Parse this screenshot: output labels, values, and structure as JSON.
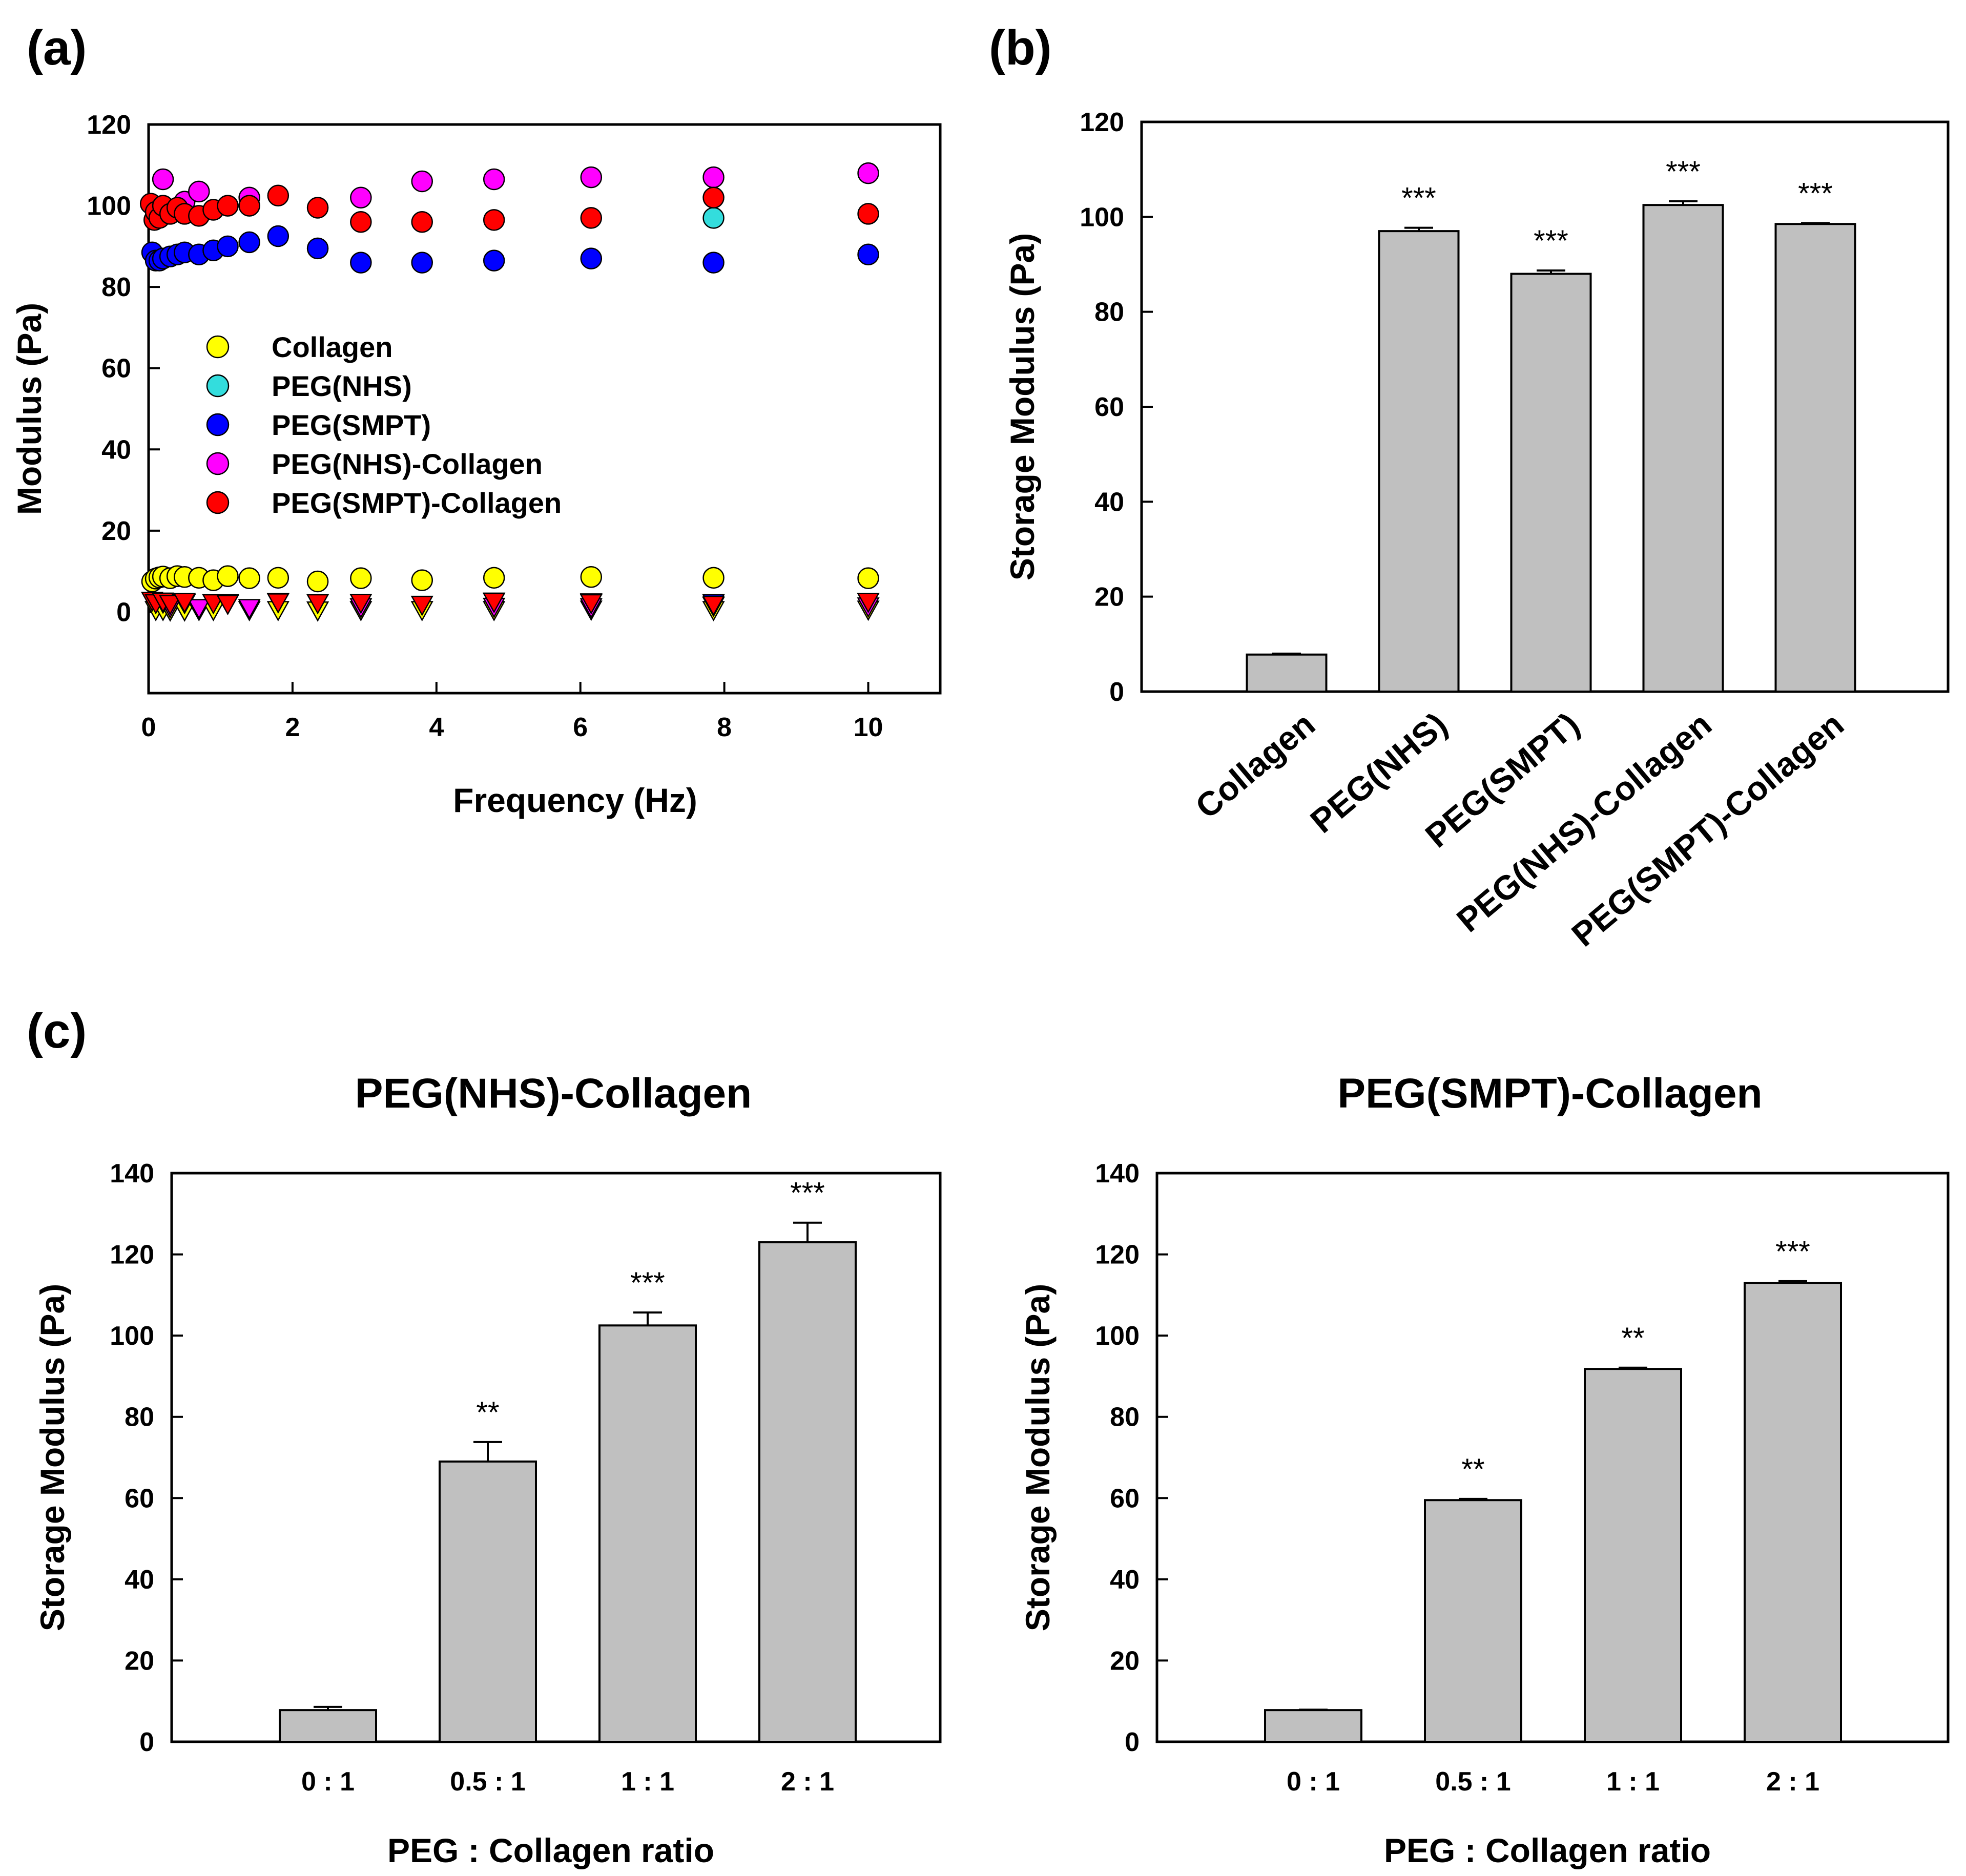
{
  "panels": {
    "a": "(a)",
    "b": "(b)",
    "c": "(c)"
  },
  "chart_data": [
    {
      "id": "a",
      "type": "scatter",
      "xlabel": "Frequency (Hz)",
      "ylabel": "Modulus (Pa)",
      "xlim": [
        0,
        11
      ],
      "ylim": [
        -20,
        120
      ],
      "xticks": [
        0,
        2,
        4,
        6,
        8,
        10
      ],
      "yticks": [
        0,
        20,
        40,
        60,
        80,
        100,
        120
      ],
      "legend_position": "center-left",
      "note": "circles = storage modulus, triangles = loss modulus",
      "series": [
        {
          "name": "Collagen",
          "color": "#ffff00",
          "storage": [
            [
              0.05,
              7.5
            ],
            [
              0.1,
              8.2
            ],
            [
              0.15,
              8.5
            ],
            [
              0.2,
              8.7
            ],
            [
              0.3,
              8.3
            ],
            [
              0.4,
              8.8
            ],
            [
              0.5,
              8.6
            ],
            [
              0.7,
              8.4
            ],
            [
              0.9,
              7.8
            ],
            [
              1.1,
              8.8
            ],
            [
              1.4,
              8.3
            ],
            [
              1.8,
              8.4
            ],
            [
              2.35,
              7.5
            ],
            [
              2.95,
              8.3
            ],
            [
              3.8,
              7.8
            ],
            [
              4.8,
              8.4
            ],
            [
              6.15,
              8.6
            ],
            [
              7.85,
              8.4
            ],
            [
              10,
              8.3
            ]
          ],
          "loss": [
            [
              0.1,
              0.5
            ],
            [
              0.2,
              0.5
            ],
            [
              0.3,
              0.4
            ],
            [
              0.5,
              0.4
            ],
            [
              0.7,
              0.5
            ],
            [
              0.9,
              0.5
            ],
            [
              1.4,
              0.5
            ],
            [
              1.8,
              0.5
            ],
            [
              2.35,
              0.4
            ],
            [
              2.95,
              0.5
            ],
            [
              3.8,
              0.5
            ],
            [
              4.8,
              0.5
            ],
            [
              6.15,
              0.6
            ],
            [
              7.85,
              0.5
            ],
            [
              10,
              0.6
            ]
          ]
        },
        {
          "name": "PEG(NHS)",
          "color": "#33dddd",
          "storage": [
            [
              7.85,
              97
            ]
          ],
          "loss": [
            [
              7.85,
              1.5
            ]
          ]
        },
        {
          "name": "PEG(SMPT)",
          "color": "#0000ff",
          "storage": [
            [
              0.05,
              88.5
            ],
            [
              0.1,
              86.5
            ],
            [
              0.15,
              86.5
            ],
            [
              0.2,
              87
            ],
            [
              0.3,
              87.5
            ],
            [
              0.4,
              88
            ],
            [
              0.5,
              88.5
            ],
            [
              0.7,
              88
            ],
            [
              0.9,
              89
            ],
            [
              1.1,
              90
            ],
            [
              1.4,
              91
            ],
            [
              1.8,
              92.5
            ],
            [
              2.35,
              89.5
            ],
            [
              2.95,
              86
            ],
            [
              3.8,
              86
            ],
            [
              4.8,
              86.5
            ],
            [
              6.15,
              87
            ],
            [
              7.85,
              86
            ],
            [
              10,
              88
            ]
          ],
          "loss": [
            [
              0.1,
              2.5
            ],
            [
              0.2,
              2.3
            ],
            [
              0.5,
              2.2
            ],
            [
              1.1,
              2.2
            ],
            [
              1.8,
              2.5
            ],
            [
              2.95,
              2.3
            ],
            [
              4.8,
              2.6
            ],
            [
              6.15,
              2.4
            ],
            [
              7.85,
              2.2
            ],
            [
              10,
              2.5
            ]
          ]
        },
        {
          "name": "PEG(NHS)-Collagen",
          "color": "#ff00ff",
          "storage": [
            [
              0.2,
              106.5
            ],
            [
              0.5,
              101
            ],
            [
              0.7,
              103.5
            ],
            [
              1.4,
              102
            ],
            [
              2.95,
              102
            ],
            [
              3.8,
              106
            ],
            [
              4.8,
              106.5
            ],
            [
              6.15,
              107
            ],
            [
              7.85,
              107
            ],
            [
              10,
              108
            ]
          ],
          "loss": [
            [
              0.3,
              1.2
            ],
            [
              0.7,
              1.0
            ],
            [
              1.4,
              1.0
            ],
            [
              2.95,
              1.2
            ],
            [
              4.8,
              1.3
            ],
            [
              6.15,
              1.2
            ],
            [
              10,
              1.4
            ]
          ]
        },
        {
          "name": "PEG(SMPT)-Collagen",
          "color": "#ff0000",
          "storage": [
            [
              0.03,
              100.5
            ],
            [
              0.08,
              96.5
            ],
            [
              0.1,
              98.5
            ],
            [
              0.15,
              97
            ],
            [
              0.2,
              100
            ],
            [
              0.3,
              98
            ],
            [
              0.4,
              99.5
            ],
            [
              0.5,
              98
            ],
            [
              0.7,
              97.5
            ],
            [
              0.9,
              99
            ],
            [
              1.1,
              100
            ],
            [
              1.4,
              100
            ],
            [
              1.8,
              102.5
            ],
            [
              2.35,
              99.5
            ],
            [
              2.95,
              96
            ],
            [
              3.8,
              96
            ],
            [
              4.8,
              96.5
            ],
            [
              6.15,
              97
            ],
            [
              7.85,
              102
            ],
            [
              10,
              98
            ]
          ],
          "loss": [
            [
              0.05,
              2.8
            ],
            [
              0.1,
              2.2
            ],
            [
              0.2,
              2.6
            ],
            [
              0.3,
              2.0
            ],
            [
              0.5,
              2.5
            ],
            [
              0.9,
              2.2
            ],
            [
              1.1,
              2.0
            ],
            [
              1.8,
              2.4
            ],
            [
              2.35,
              2.2
            ],
            [
              2.95,
              2.3
            ],
            [
              3.8,
              1.8
            ],
            [
              4.8,
              2.5
            ],
            [
              6.15,
              2.2
            ],
            [
              7.85,
              1.8
            ],
            [
              10,
              2.5
            ]
          ]
        }
      ]
    },
    {
      "id": "b",
      "type": "bar",
      "ylabel": "Storage Modulus (Pa)",
      "ylim": [
        0,
        120
      ],
      "yticks": [
        0,
        20,
        40,
        60,
        80,
        100,
        120
      ],
      "categories": [
        "Collagen",
        "PEG(NHS)",
        "PEG(SMPT)",
        "PEG(NHS)-Collagen",
        "PEG(SMPT)-Collagen"
      ],
      "values": [
        7.8,
        97,
        88,
        102.5,
        98.5
      ],
      "errors": [
        0.2,
        0.7,
        0.7,
        0.8,
        0.2
      ],
      "significance": [
        "",
        "***",
        "***",
        "***",
        "***"
      ]
    },
    {
      "id": "c1",
      "type": "bar",
      "title": "PEG(NHS)-Collagen",
      "xlabel": "PEG : Collagen ratio",
      "ylabel": "Storage Modulus (Pa)",
      "ylim": [
        0,
        140
      ],
      "yticks": [
        0,
        20,
        40,
        60,
        80,
        100,
        120,
        140
      ],
      "categories": [
        "0 : 1",
        "0.5 : 1",
        "1 : 1",
        "2 : 1"
      ],
      "values": [
        7.8,
        69,
        102.5,
        123
      ],
      "errors": [
        0.8,
        4.8,
        3.2,
        4.8
      ],
      "significance": [
        "",
        "**",
        "***",
        "***"
      ]
    },
    {
      "id": "c2",
      "type": "bar",
      "title": "PEG(SMPT)-Collagen",
      "xlabel": "PEG : Collagen ratio",
      "ylabel": "Storage Modulus (Pa)",
      "ylim": [
        0,
        140
      ],
      "yticks": [
        0,
        20,
        40,
        60,
        80,
        100,
        120,
        140
      ],
      "categories": [
        "0 : 1",
        "0.5 : 1",
        "1 : 1",
        "2 : 1"
      ],
      "values": [
        7.8,
        59.5,
        91.8,
        113
      ],
      "errors": [
        0.1,
        0.3,
        0.3,
        0.4
      ],
      "significance": [
        "",
        "**",
        "**",
        "***"
      ]
    }
  ]
}
